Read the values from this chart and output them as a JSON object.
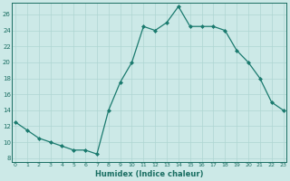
{
  "x": [
    0,
    1,
    2,
    3,
    4,
    5,
    6,
    7,
    8,
    9,
    10,
    11,
    12,
    13,
    14,
    15,
    16,
    17,
    18,
    19,
    20,
    21,
    22,
    23
  ],
  "y": [
    12.5,
    11.5,
    10.5,
    10.0,
    9.5,
    9.0,
    9.0,
    8.5,
    14.0,
    17.5,
    20.0,
    24.5,
    24.0,
    25.0,
    27.0,
    24.5,
    24.5,
    24.5,
    24.0,
    21.5,
    20.0,
    18.0,
    15.0,
    14.0
  ],
  "line_color": "#1a7a6e",
  "marker": "D",
  "marker_size": 2.0,
  "bg_color": "#cce9e7",
  "grid_color": "#aed6d2",
  "tick_color": "#1a6e62",
  "label_color": "#1a6e62",
  "xlabel": "Humidex (Indice chaleur)",
  "ylim": [
    7.5,
    27.5
  ],
  "yticks": [
    8,
    10,
    12,
    14,
    16,
    18,
    20,
    22,
    24,
    26
  ],
  "xticks": [
    0,
    1,
    2,
    3,
    4,
    5,
    6,
    7,
    8,
    9,
    10,
    11,
    12,
    13,
    14,
    15,
    16,
    17,
    18,
    19,
    20,
    21,
    22,
    23
  ],
  "xlim": [
    -0.3,
    23.3
  ]
}
